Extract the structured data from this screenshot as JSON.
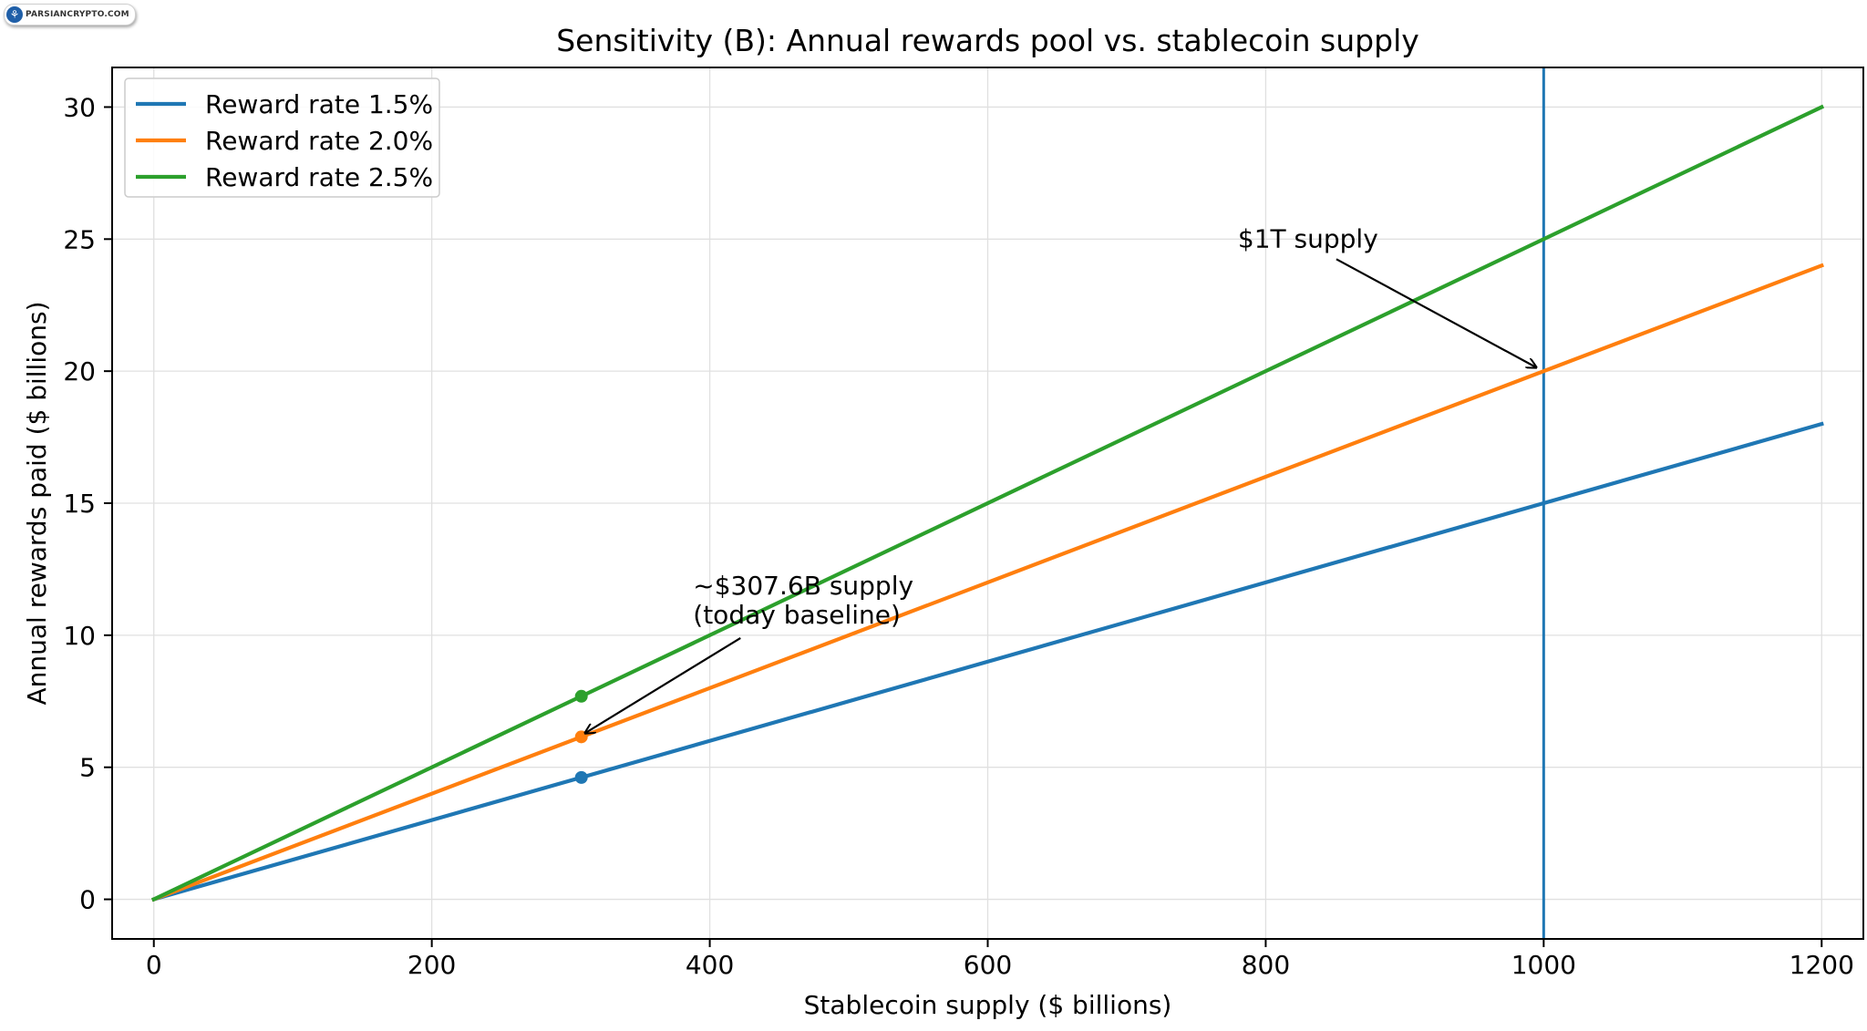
{
  "watermark": {
    "text": "PARSIANCRYPTO.COM"
  },
  "chart_data": {
    "type": "line",
    "title": "Sensitivity (B): Annual rewards pool vs. stablecoin supply",
    "xlabel": "Stablecoin supply ($ billions)",
    "ylabel": "Annual rewards paid ($ billions)",
    "xlim": [
      -30,
      1230
    ],
    "ylim": [
      -1.5,
      31.5
    ],
    "xticks": [
      0,
      200,
      400,
      600,
      800,
      1000,
      1200
    ],
    "yticks": [
      0,
      5,
      10,
      15,
      20,
      25,
      30
    ],
    "grid": true,
    "legend_position": "top-left",
    "series": [
      {
        "name": "Reward rate 1.5%",
        "color": "#1f77b4",
        "x": [
          0,
          1200
        ],
        "y": [
          0,
          18
        ],
        "marker": {
          "x": 307.6,
          "y": 4.614
        }
      },
      {
        "name": "Reward rate 2.0%",
        "color": "#ff7f0e",
        "x": [
          0,
          1200
        ],
        "y": [
          0,
          24
        ],
        "marker": {
          "x": 307.6,
          "y": 6.152
        }
      },
      {
        "name": "Reward rate 2.5%",
        "color": "#2ca02c",
        "x": [
          0,
          1200
        ],
        "y": [
          0,
          30
        ],
        "marker": {
          "x": 307.6,
          "y": 7.69
        }
      }
    ],
    "vline": {
      "x": 1000,
      "color": "#1f77b4"
    },
    "annotations": [
      {
        "text": "$1T supply",
        "arrow_to": [
          1000,
          20
        ],
        "text_at": [
          780,
          25
        ]
      },
      {
        "text": "~$307.6B supply\n(today baseline)",
        "arrow_to": [
          307.6,
          6.152
        ],
        "text_at": [
          388,
          11
        ]
      }
    ]
  }
}
